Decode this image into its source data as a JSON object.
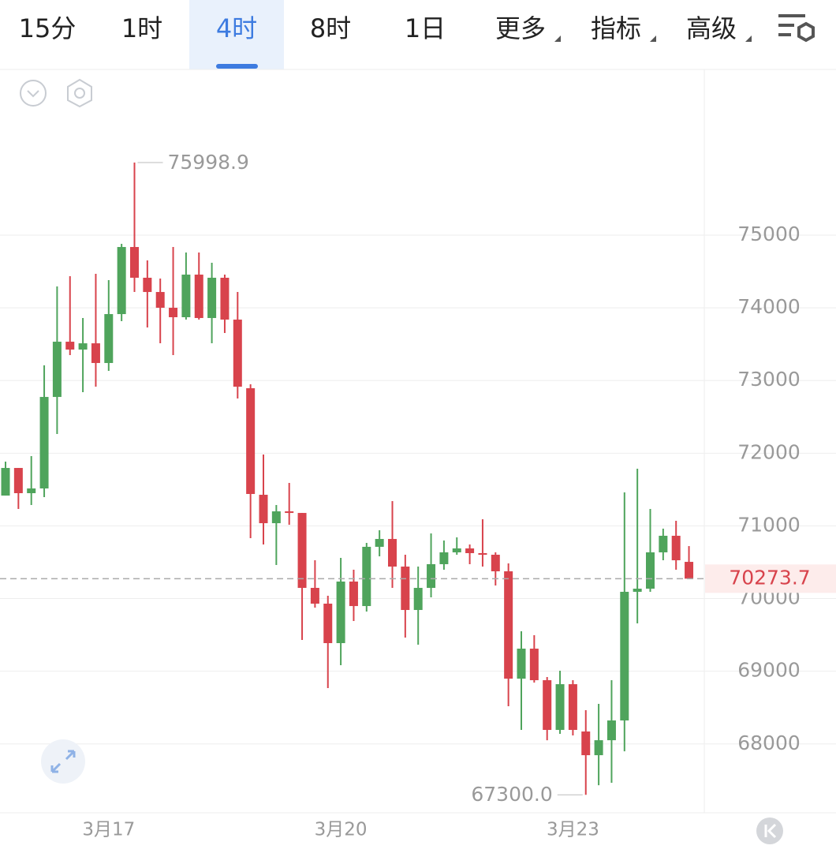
{
  "tabs": [
    {
      "label": "15分"
    },
    {
      "label": "1时"
    },
    {
      "label": "4时",
      "active": true
    },
    {
      "label": "8时"
    },
    {
      "label": "1日"
    },
    {
      "label": "更多"
    },
    {
      "label": "指标"
    },
    {
      "label": "高级"
    }
  ],
  "chart_data": {
    "type": "candlestick",
    "categories": [
      null,
      null,
      null,
      null,
      null,
      null,
      null,
      null,
      "3月17",
      null,
      null,
      null,
      null,
      null,
      null,
      null,
      null,
      null,
      null,
      null,
      null,
      null,
      null,
      null,
      null,
      null,
      "3月20",
      null,
      null,
      null,
      null,
      null,
      null,
      null,
      null,
      null,
      null,
      null,
      null,
      null,
      null,
      null,
      null,
      null,
      "3月23",
      null,
      null,
      null,
      null,
      null,
      null,
      null,
      null,
      null
    ],
    "open": [
      71417,
      71797,
      71450,
      71515,
      72774,
      73534,
      73426,
      73512,
      73241,
      73914,
      74837,
      74414,
      74218,
      74001,
      73871,
      74457,
      73860,
      74414,
      73838,
      72894,
      71428,
      71037,
      71200,
      71178,
      70147,
      69930,
      69387,
      70234,
      69897,
      70712,
      70820,
      70440,
      69843,
      70147,
      70473,
      70636,
      70690,
      70625,
      70603,
      70375,
      68898,
      69311,
      68877,
      68193,
      68822,
      68171,
      67845,
      68051,
      68323,
      70093,
      70136,
      70636,
      70864,
      70505
    ],
    "high": [
      71884,
      71797,
      71960,
      73209,
      74294,
      74435,
      73860,
      74468,
      74381,
      74881,
      75998.9,
      74653,
      74403,
      74837,
      74761,
      74761,
      74620,
      74457,
      74218,
      72948,
      71982,
      71287,
      71591,
      71178,
      70527,
      70038,
      70560,
      70397,
      70766,
      70940,
      71341,
      70603,
      70440,
      70896,
      70799,
      70842,
      70744,
      71091,
      70636,
      70484,
      69550,
      69496,
      68920,
      69007,
      68877,
      68464,
      68551,
      68877,
      71461,
      71786,
      71233,
      70962,
      71070,
      70722
    ],
    "low": [
      71417,
      71233,
      71287,
      71396,
      72264,
      73350,
      72839,
      72915,
      73133,
      73817,
      74218,
      73730,
      73513,
      73350,
      73838,
      73838,
      73513,
      73654,
      72753,
      70831,
      70744,
      70462,
      71015,
      69430,
      69875,
      68768,
      69083,
      69691,
      69821,
      70581,
      70147,
      69463,
      69365,
      70017,
      70397,
      70603,
      70473,
      70440,
      70180,
      68518,
      68193,
      68844,
      68051,
      68138,
      68117,
      67300,
      67432,
      67465,
      67899,
      69658,
      70093,
      70527,
      70397,
      70273.7
    ],
    "close": [
      71797,
      71450,
      71515,
      72774,
      73534,
      73426,
      73512,
      73241,
      73914,
      74837,
      74414,
      74218,
      74001,
      73871,
      74457,
      73860,
      74414,
      73838,
      72915,
      71439,
      71037,
      71200,
      71178,
      70147,
      69930,
      69387,
      70234,
      69897,
      70712,
      70820,
      70440,
      69843,
      70147,
      70473,
      70636,
      70690,
      70625,
      70603,
      70375,
      68898,
      69311,
      68877,
      68193,
      68822,
      68193,
      67845,
      68051,
      68323,
      70093,
      70136,
      70636,
      70864,
      70527,
      70273.7
    ],
    "up_color": "#4fa45c",
    "down_color": "#d8434c",
    "ylim": [
      67053,
      77280
    ],
    "yticks": [
      68000,
      69000,
      70000,
      71000,
      72000,
      73000,
      74000,
      75000
    ],
    "grid": true,
    "high_marker": {
      "value": 75998.9,
      "label": "75998.9"
    },
    "low_marker": {
      "value": 67300,
      "label": "67300.0"
    },
    "last_price": {
      "value": 70273.7,
      "label": "70273.7"
    }
  }
}
